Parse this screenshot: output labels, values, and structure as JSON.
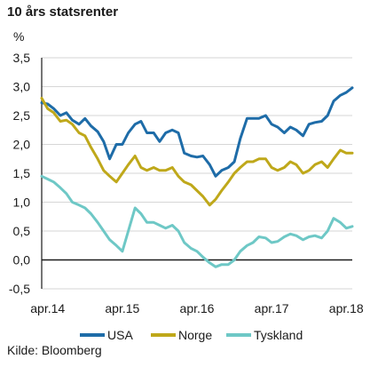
{
  "title": "10 års statsrenter",
  "y_unit": "%",
  "source": "Kilde: Bloomberg",
  "colors": {
    "USA": "#1e6ca8",
    "Norge": "#bfa81a",
    "Tyskland": "#6ec8c6",
    "grid": "#d6d6d6",
    "axis": "#1a1a1a"
  },
  "chart_data": {
    "type": "line",
    "xlim": [
      2014.17,
      2018.33
    ],
    "ylim": [
      -0.5,
      3.5
    ],
    "yticks": [
      -0.5,
      0.0,
      0.5,
      1.0,
      1.5,
      2.0,
      2.5,
      3.0,
      3.5
    ],
    "ytick_labels": [
      "-0,5",
      "0,0",
      "0,5",
      "1,0",
      "1,5",
      "2,0",
      "2,5",
      "3,0",
      "3,5"
    ],
    "xtick_values": [
      2014.25,
      2015.25,
      2016.25,
      2017.25,
      2018.25
    ],
    "xtick_labels": [
      "apr.14",
      "apr.15",
      "apr.16",
      "apr.17",
      "apr.18"
    ],
    "grid": "horizontal",
    "legend": "bottom",
    "series": [
      {
        "name": "USA",
        "x": [
          2014.17,
          2014.25,
          2014.33,
          2014.42,
          2014.5,
          2014.58,
          2014.67,
          2014.75,
          2014.83,
          2014.92,
          2015.0,
          2015.08,
          2015.17,
          2015.25,
          2015.33,
          2015.42,
          2015.5,
          2015.58,
          2015.67,
          2015.75,
          2015.83,
          2015.92,
          2016.0,
          2016.08,
          2016.17,
          2016.25,
          2016.33,
          2016.42,
          2016.5,
          2016.58,
          2016.67,
          2016.75,
          2016.83,
          2016.92,
          2017.0,
          2017.08,
          2017.17,
          2017.25,
          2017.33,
          2017.42,
          2017.5,
          2017.58,
          2017.67,
          2017.75,
          2017.83,
          2017.92,
          2018.0,
          2018.08,
          2018.17,
          2018.25,
          2018.33
        ],
        "values": [
          2.72,
          2.7,
          2.62,
          2.5,
          2.55,
          2.42,
          2.35,
          2.45,
          2.32,
          2.22,
          2.05,
          1.75,
          2.0,
          2.0,
          2.2,
          2.35,
          2.4,
          2.2,
          2.2,
          2.05,
          2.2,
          2.25,
          2.2,
          1.85,
          1.8,
          1.78,
          1.8,
          1.65,
          1.45,
          1.55,
          1.6,
          1.7,
          2.1,
          2.45,
          2.45,
          2.45,
          2.5,
          2.35,
          2.3,
          2.2,
          2.3,
          2.25,
          2.15,
          2.35,
          2.38,
          2.4,
          2.5,
          2.75,
          2.85,
          2.9,
          2.98
        ]
      },
      {
        "name": "Norge",
        "x": [
          2014.17,
          2014.25,
          2014.33,
          2014.42,
          2014.5,
          2014.58,
          2014.67,
          2014.75,
          2014.83,
          2014.92,
          2015.0,
          2015.08,
          2015.17,
          2015.25,
          2015.33,
          2015.42,
          2015.5,
          2015.58,
          2015.67,
          2015.75,
          2015.83,
          2015.92,
          2016.0,
          2016.08,
          2016.17,
          2016.25,
          2016.33,
          2016.42,
          2016.5,
          2016.58,
          2016.67,
          2016.75,
          2016.83,
          2016.92,
          2017.0,
          2017.08,
          2017.17,
          2017.25,
          2017.33,
          2017.42,
          2017.5,
          2017.58,
          2017.67,
          2017.75,
          2017.83,
          2017.92,
          2018.0,
          2018.08,
          2018.17,
          2018.25,
          2018.33
        ],
        "values": [
          2.8,
          2.62,
          2.55,
          2.4,
          2.42,
          2.35,
          2.2,
          2.15,
          1.95,
          1.75,
          1.55,
          1.45,
          1.35,
          1.5,
          1.65,
          1.8,
          1.6,
          1.55,
          1.6,
          1.55,
          1.55,
          1.6,
          1.45,
          1.35,
          1.3,
          1.2,
          1.1,
          0.95,
          1.05,
          1.2,
          1.35,
          1.5,
          1.6,
          1.7,
          1.7,
          1.75,
          1.75,
          1.6,
          1.55,
          1.6,
          1.7,
          1.65,
          1.5,
          1.55,
          1.65,
          1.7,
          1.6,
          1.75,
          1.9,
          1.85,
          1.85
        ]
      },
      {
        "name": "Tyskland",
        "x": [
          2014.17,
          2014.25,
          2014.33,
          2014.42,
          2014.5,
          2014.58,
          2014.67,
          2014.75,
          2014.83,
          2014.92,
          2015.0,
          2015.08,
          2015.17,
          2015.25,
          2015.33,
          2015.42,
          2015.5,
          2015.58,
          2015.67,
          2015.75,
          2015.83,
          2015.92,
          2016.0,
          2016.08,
          2016.17,
          2016.25,
          2016.33,
          2016.42,
          2016.5,
          2016.58,
          2016.67,
          2016.75,
          2016.83,
          2016.92,
          2017.0,
          2017.08,
          2017.17,
          2017.25,
          2017.33,
          2017.42,
          2017.5,
          2017.58,
          2017.67,
          2017.75,
          2017.83,
          2017.92,
          2018.0,
          2018.08,
          2018.17,
          2018.25,
          2018.33
        ],
        "values": [
          1.45,
          1.4,
          1.35,
          1.25,
          1.15,
          1.0,
          0.95,
          0.9,
          0.8,
          0.65,
          0.5,
          0.35,
          0.25,
          0.15,
          0.5,
          0.9,
          0.8,
          0.65,
          0.65,
          0.6,
          0.55,
          0.6,
          0.5,
          0.3,
          0.2,
          0.15,
          0.05,
          -0.05,
          -0.12,
          -0.08,
          -0.08,
          0.0,
          0.15,
          0.25,
          0.3,
          0.4,
          0.38,
          0.3,
          0.32,
          0.4,
          0.45,
          0.42,
          0.35,
          0.4,
          0.42,
          0.38,
          0.5,
          0.72,
          0.65,
          0.55,
          0.58
        ]
      }
    ]
  }
}
